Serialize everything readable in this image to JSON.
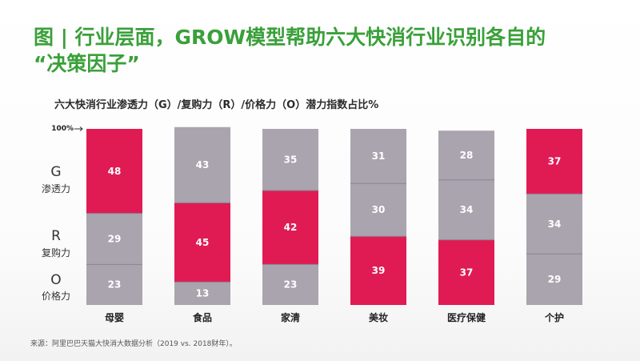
{
  "slide": {
    "title_line1": "图 | 行业层面，GROW模型帮助六大快消行业识别各自的",
    "title_line2": "“决策因子”",
    "source": "来源：阿里巴巴天猫大快消大数据分析（2019 vs. 2018财年）。"
  },
  "colors": {
    "title": "#3aa03a",
    "highlight": "#e01b54",
    "neutral": "#a9a4ae",
    "separator": "#8a8590"
  },
  "chart_data": {
    "type": "bar",
    "stacked": true,
    "title": "六大快消行业渗透力（G）/复购力（R）/价格力（O）潜力指数占比%",
    "categories": [
      "母婴",
      "食品",
      "家清",
      "美妆",
      "医疗保健",
      "个护"
    ],
    "series": [
      {
        "key": "O",
        "name": "价格力",
        "values": [
          23,
          13,
          23,
          39,
          37,
          29
        ]
      },
      {
        "key": "R",
        "name": "复购力",
        "values": [
          29,
          45,
          42,
          30,
          34,
          34
        ]
      },
      {
        "key": "G",
        "name": "渗透力",
        "values": [
          48,
          43,
          35,
          31,
          28,
          37
        ]
      }
    ],
    "highlighted": {
      "母婴": "G",
      "食品": "R",
      "家清": "R",
      "美妆": "O",
      "医疗保健": "O",
      "个护": "G"
    },
    "ylim": [
      0,
      100
    ],
    "reference_label": "100%",
    "legend": [
      {
        "letter": "G",
        "name": "渗透力"
      },
      {
        "letter": "R",
        "name": "复购力"
      },
      {
        "letter": "O",
        "name": "价格力"
      }
    ],
    "legend_position": "left",
    "grid": false
  }
}
